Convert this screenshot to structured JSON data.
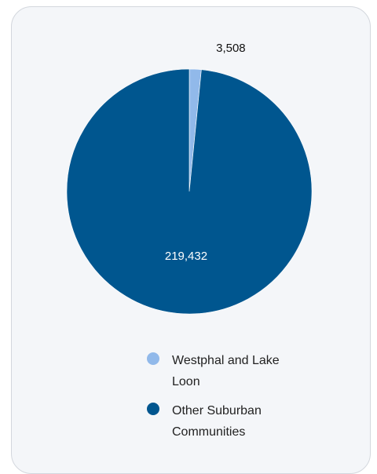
{
  "chart_data": {
    "type": "pie",
    "title": "",
    "slices": [
      {
        "label": "Westphal and Lake Loon",
        "value": 3508,
        "value_label": "3,508",
        "color": "#91b9ea"
      },
      {
        "label": "Other Suburban Communities",
        "value": 219432,
        "value_label": "219,432",
        "color": "#00568f"
      }
    ],
    "legend_position": "bottom"
  },
  "legend": {
    "items": [
      {
        "label": "Westphal and Lake Loon",
        "color": "#91b9ea"
      },
      {
        "label": "Other Suburban Communities",
        "color": "#00568f"
      }
    ]
  }
}
